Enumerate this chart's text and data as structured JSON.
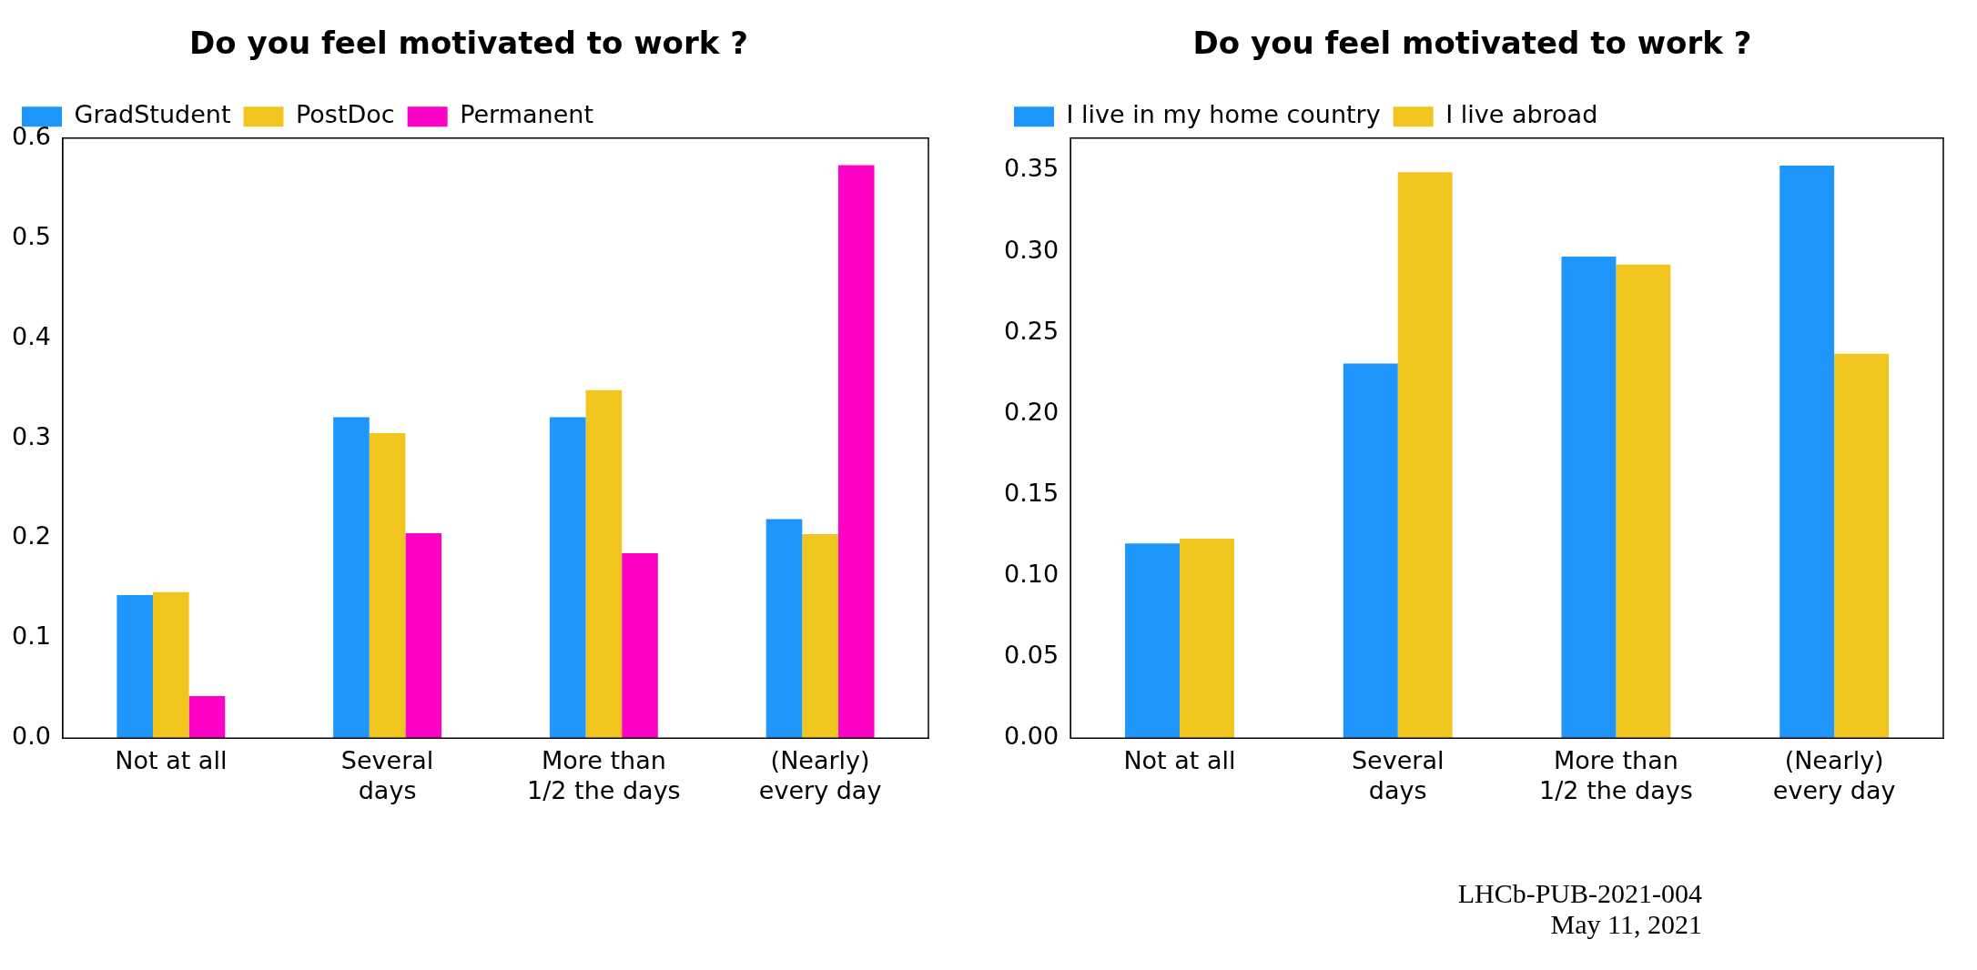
{
  "chart_data": [
    {
      "type": "bar",
      "title": "Do you feel motivated to work ?",
      "categories": [
        "Not at all",
        "Several\ndays",
        "More than\n1/2 the days",
        "(Nearly)\nevery day"
      ],
      "series": [
        {
          "name": "GradStudent",
          "color": "#1e96fc",
          "values": [
            0.143,
            0.321,
            0.321,
            0.219
          ]
        },
        {
          "name": "PostDoc",
          "color": "#f0c51e",
          "values": [
            0.146,
            0.305,
            0.348,
            0.204
          ]
        },
        {
          "name": "Permanent",
          "color": "#fe01c6",
          "values": [
            0.042,
            0.205,
            0.185,
            0.573
          ]
        }
      ],
      "ylim": [
        0,
        0.6
      ],
      "yticks": [
        {
          "value": 0,
          "label": "0.0"
        },
        {
          "value": 0.1,
          "label": "0.1"
        },
        {
          "value": 0.2,
          "label": "0.2"
        },
        {
          "value": 0.3,
          "label": "0.3"
        },
        {
          "value": 0.4,
          "label": "0.4"
        },
        {
          "value": 0.5,
          "label": "0.5"
        },
        {
          "value": 0.6,
          "label": "0.6"
        }
      ],
      "grid": false,
      "legend": "top left"
    },
    {
      "type": "bar",
      "title": "Do you feel motivated to work ?",
      "categories": [
        "Not at all",
        "Several\ndays",
        "More than\n1/2 the days",
        "(Nearly)\nevery day"
      ],
      "series": [
        {
          "name": "I live in my home country",
          "color": "#1e96fc",
          "values": [
            0.12,
            0.231,
            0.297,
            0.353
          ]
        },
        {
          "name": "I live abroad",
          "color": "#f0c51e",
          "values": [
            0.123,
            0.349,
            0.292,
            0.237
          ]
        }
      ],
      "ylim": [
        0,
        0.37
      ],
      "yticks": [
        {
          "value": 0,
          "label": "0.00"
        },
        {
          "value": 0.05,
          "label": "0.05"
        },
        {
          "value": 0.1,
          "label": "0.10"
        },
        {
          "value": 0.15,
          "label": "0.15"
        },
        {
          "value": 0.2,
          "label": "0.20"
        },
        {
          "value": 0.25,
          "label": "0.25"
        },
        {
          "value": 0.3,
          "label": "0.30"
        },
        {
          "value": 0.35,
          "label": "0.35"
        }
      ],
      "grid": false,
      "legend": "top left",
      "annotations": [
        "LHCb-PUB-2021-004",
        "May 11, 2021"
      ]
    }
  ]
}
